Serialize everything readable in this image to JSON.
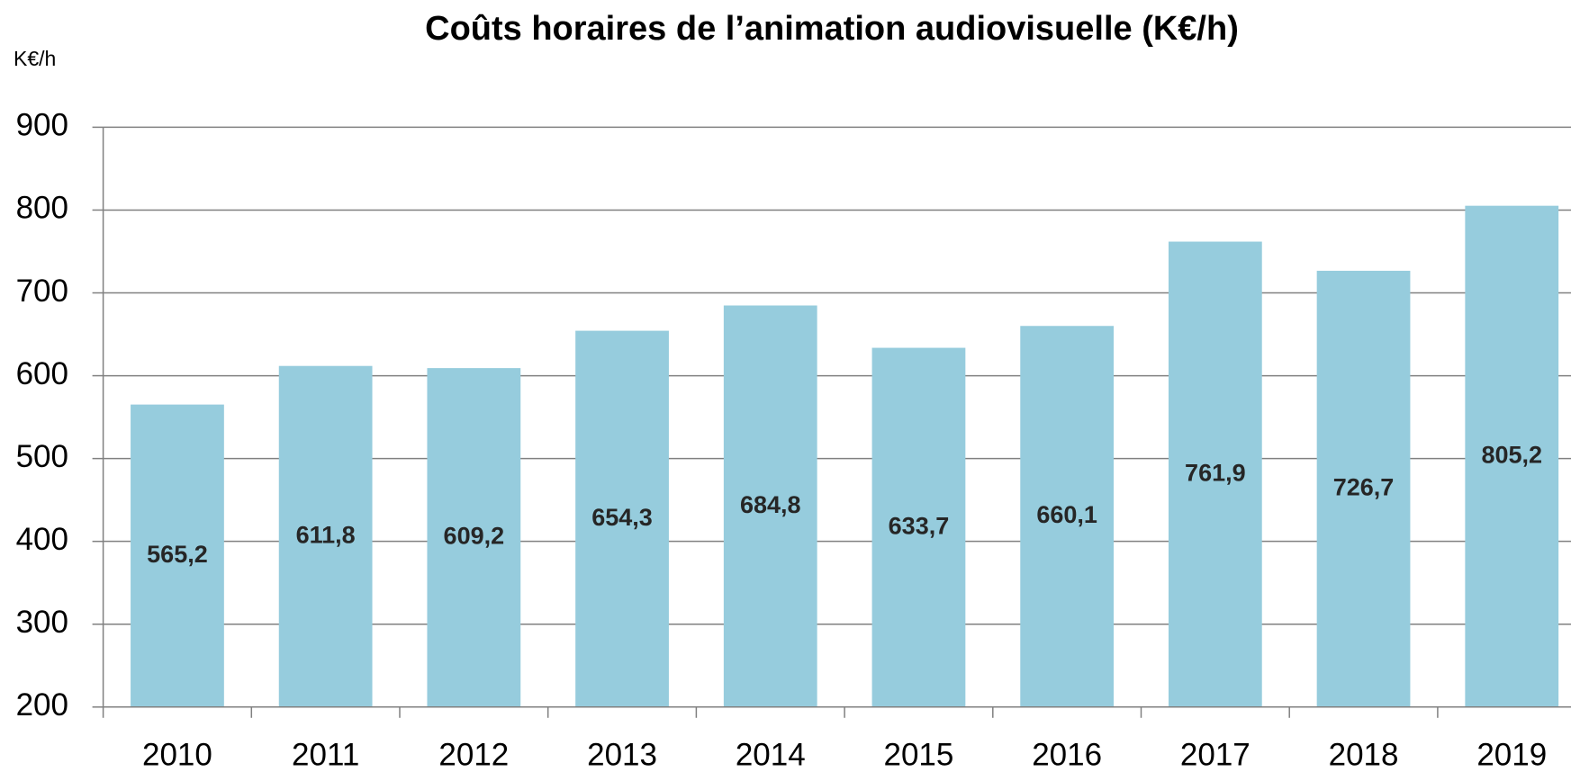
{
  "chart_data": {
    "type": "bar",
    "title": "Coûts horaires de l’animation audiovisuelle (K€/h)",
    "ylabel": "K€/h",
    "categories": [
      "2010",
      "2011",
      "2012",
      "2013",
      "2014",
      "2015",
      "2016",
      "2017",
      "2018",
      "2019"
    ],
    "values": [
      565.2,
      611.8,
      609.2,
      654.3,
      684.8,
      633.7,
      660.1,
      761.9,
      726.7,
      805.2
    ],
    "value_labels": [
      "565,2",
      "611,8",
      "609,2",
      "654,3",
      "684,8",
      "633,7",
      "660,1",
      "761,9",
      "726,7",
      "805,2"
    ],
    "color": "#96ccdd",
    "ylim": [
      200,
      900
    ],
    "yticks": [
      200,
      300,
      400,
      500,
      600,
      700,
      800,
      900
    ],
    "grid": true
  }
}
